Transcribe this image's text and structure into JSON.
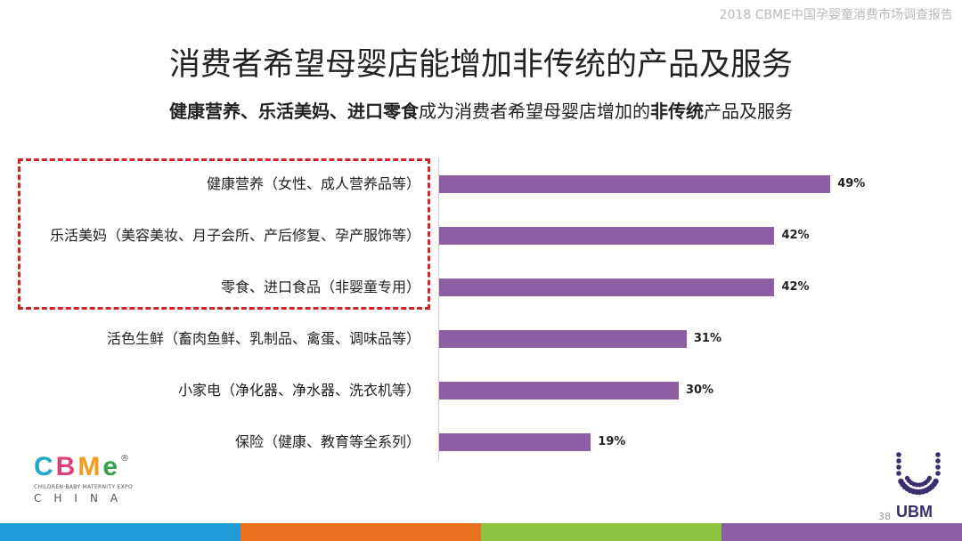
{
  "header": {
    "source": "2018 CBME中国孕婴童消费市场调查报告"
  },
  "title": "消费者希望母婴店能增加非传统的产品及服务",
  "subtitle": {
    "bold_part1": "健康营养、乐活美妈、进口零食",
    "normal_part1": "成为消费者希望母婴店增加的",
    "bold_part2": "非传统",
    "normal_part2": "产品及服务"
  },
  "chart_data": {
    "type": "bar",
    "orientation": "horizontal",
    "categories": [
      "健康营养（女性、成人营养品等）",
      "乐活美妈（美容美妆、月子会所、产后修复、孕产服饰等）",
      "零食、进口食品（非婴童专用）",
      "活色生鲜（畜肉鱼鲜、乳制品、禽蛋、调味品等）",
      "小家电（净化器、净水器、洗衣机等）",
      "保险（健康、教育等全系列）"
    ],
    "values": [
      49,
      42,
      42,
      31,
      30,
      19
    ],
    "value_labels": [
      "49%",
      "42%",
      "42%",
      "31%",
      "30%",
      "19%"
    ],
    "unit": "%",
    "xlim": [
      0,
      55
    ],
    "bar_color": "#8e5ea2",
    "highlighted_categories": [
      0,
      1,
      2
    ],
    "highlight_color": "#d0242b"
  },
  "logos": {
    "left": {
      "letters": [
        "C",
        "B",
        "M",
        "e"
      ],
      "letter_colors": [
        "#1fa9c9",
        "#e0407a",
        "#f29a1d",
        "#37a04a"
      ],
      "registered": "®",
      "tagline": "CHILDREN·BABY·MATERNITY EXPO",
      "country": "CHINA"
    },
    "right": {
      "name": "UBM",
      "color": "#3b2d6e"
    }
  },
  "page_number": "38",
  "footer_colors": [
    "#1f9bd7",
    "#e8701f",
    "#8cc33f",
    "#8b5ea3"
  ]
}
